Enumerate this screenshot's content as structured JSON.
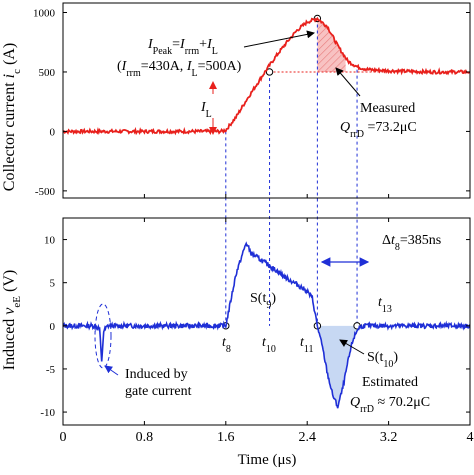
{
  "chart_data": [
    {
      "type": "line",
      "panel": "top",
      "ylabel": "Collector current i_c (A)",
      "ylabel_parts": {
        "main": "Collector current ",
        "var": "i",
        "sub": "c",
        "unit": " (A)"
      },
      "xlim": [
        0,
        4
      ],
      "ylim": [
        -560,
        1080
      ],
      "yticks": [
        -500,
        0,
        500,
        1000
      ],
      "ytick_labels": [
        "-500",
        "0",
        "500",
        "1000"
      ],
      "series": [
        {
          "color": "#e8201c",
          "x": [
            0,
            0.2,
            0.4,
            0.6,
            0.8,
            1.0,
            1.2,
            1.4,
            1.55,
            1.6,
            1.7,
            1.8,
            1.9,
            2.0,
            2.1,
            2.2,
            2.3,
            2.4,
            2.5,
            2.6,
            2.7,
            2.8,
            2.9,
            3.0,
            3.2,
            3.4,
            3.6,
            3.8,
            4.0
          ],
          "y": [
            0,
            0,
            0,
            0,
            0,
            0,
            0,
            0,
            0,
            10,
            120,
            260,
            390,
            520,
            640,
            750,
            850,
            920,
            950,
            880,
            720,
            590,
            540,
            520,
            510,
            505,
            500,
            500,
            500
          ]
        }
      ],
      "annotations": {
        "ipeak_line1": {
          "I": "I",
          "peak": "Peak",
          "eq": "=",
          "I2": "I",
          "rrm": "rrm",
          "plus": "+",
          "I3": "I",
          "L": "L"
        },
        "ipeak_line2": {
          "open": "(",
          "I": "I",
          "rrm": "rrm",
          "val1": "=430A, ",
          "I2": "I",
          "L": "L",
          "val2": "=500A)"
        },
        "il_label": {
          "I": "I",
          "L": "L"
        },
        "measured": "Measured",
        "measured_q": {
          "Q": "Q",
          "sub": "rrD",
          "val": " =73.2μC"
        }
      }
    },
    {
      "type": "line",
      "panel": "bottom",
      "ylabel": "Induced v_eE (V)",
      "ylabel_parts": {
        "main": "Induced ",
        "var": "v",
        "sub": "eE",
        "unit": " (V)"
      },
      "xlabel": "Time (μs)",
      "xlim": [
        0,
        4
      ],
      "ylim": [
        -11.5,
        12.5
      ],
      "xticks": [
        0,
        0.8,
        1.6,
        2.4,
        3.2,
        4.0
      ],
      "xtick_labels": [
        "0",
        "0.8",
        "1.6",
        "2.4",
        "3.2",
        "4"
      ],
      "yticks": [
        -10,
        -5,
        0,
        5,
        10
      ],
      "ytick_labels": [
        "-10",
        "-5",
        "0",
        "5",
        "10"
      ],
      "series": [
        {
          "color": "#1f2fd6",
          "x": [
            0,
            0.3,
            0.36,
            0.38,
            0.4,
            0.44,
            0.6,
            1.0,
            1.4,
            1.6,
            1.65,
            1.7,
            1.75,
            1.8,
            1.85,
            1.9,
            2.0,
            2.1,
            2.2,
            2.3,
            2.4,
            2.45,
            2.5,
            2.55,
            2.6,
            2.65,
            2.7,
            2.75,
            2.8,
            2.85,
            2.9,
            2.95,
            3.0,
            3.2,
            3.5,
            4.0
          ],
          "y": [
            0,
            0,
            -0.3,
            -4.3,
            -0.6,
            0,
            0,
            0,
            0,
            0,
            3.0,
            6.0,
            7.8,
            9.6,
            8.4,
            8.0,
            7.2,
            6.4,
            5.5,
            4.8,
            4.0,
            3.2,
            0,
            -2.5,
            -5.6,
            -8.0,
            -9.4,
            -7.2,
            -4.2,
            -1.6,
            -0.3,
            0,
            0,
            0,
            0,
            0
          ]
        }
      ],
      "annotations": {
        "delta": {
          "pre": "Δ",
          "t": "t",
          "sub": "8",
          "val": "=385ns"
        },
        "s_t9": {
          "pre": "S(t",
          "sub": "9",
          "post": ")"
        },
        "s_t10": {
          "pre": "S(t",
          "sub": "10",
          "post": ")"
        },
        "t8": {
          "t": "t",
          "sub": "8"
        },
        "t10": {
          "t": "t",
          "sub": "10"
        },
        "t11": {
          "t": "t",
          "sub": "11"
        },
        "t13": {
          "t": "t",
          "sub": "13"
        },
        "induced_line1": "Induced by",
        "induced_line2": "gate current",
        "estimated": "Estimated",
        "estimated_q": {
          "Q": "Q",
          "sub": "rrD",
          "val": " ≈ 70.2μC"
        }
      }
    }
  ],
  "colors": {
    "current": "#e8201c",
    "voltage": "#1f2fd6",
    "marker_dash": "#1f2fd6",
    "fill_red": "#f5a4a4",
    "fill_blue": "#c7d8f3"
  }
}
